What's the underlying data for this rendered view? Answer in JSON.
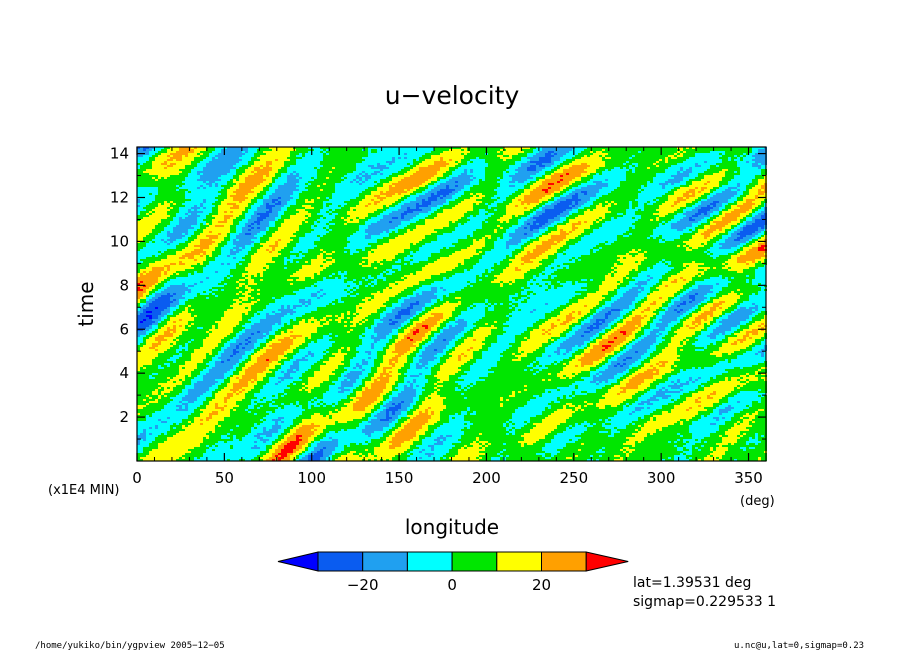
{
  "chart_data": {
    "type": "heatmap",
    "title": "u−velocity",
    "xlabel": "longitude",
    "ylabel": "time",
    "x_unit": "(deg)",
    "y_unit": "(x1E4 MIN)",
    "xlim": [
      0,
      360
    ],
    "ylim": [
      0,
      14.3
    ],
    "x_ticks": [
      0,
      50,
      100,
      150,
      200,
      250,
      300,
      350
    ],
    "y_ticks": [
      2,
      4,
      6,
      8,
      10,
      12,
      14
    ],
    "colorbar": {
      "levels": [
        -30,
        -20,
        -10,
        0,
        10,
        20,
        30
      ],
      "tick_labels": [
        "−20",
        "0",
        "20"
      ],
      "tick_values": [
        -20,
        0,
        20
      ],
      "colors": [
        "#0000ff",
        "#0a5cf0",
        "#20a0f0",
        "#00ffff",
        "#00e600",
        "#ffff00",
        "#ffa000",
        "#ff0000"
      ]
    },
    "annotations": [
      "lat=1.39531 deg",
      "sigmap=0.229533 1"
    ]
  },
  "footer": {
    "left": "/home/yukiko/bin/ygpview  2005−12−05",
    "right": "u.nc@u,lat=0,sigmap=0.23"
  }
}
